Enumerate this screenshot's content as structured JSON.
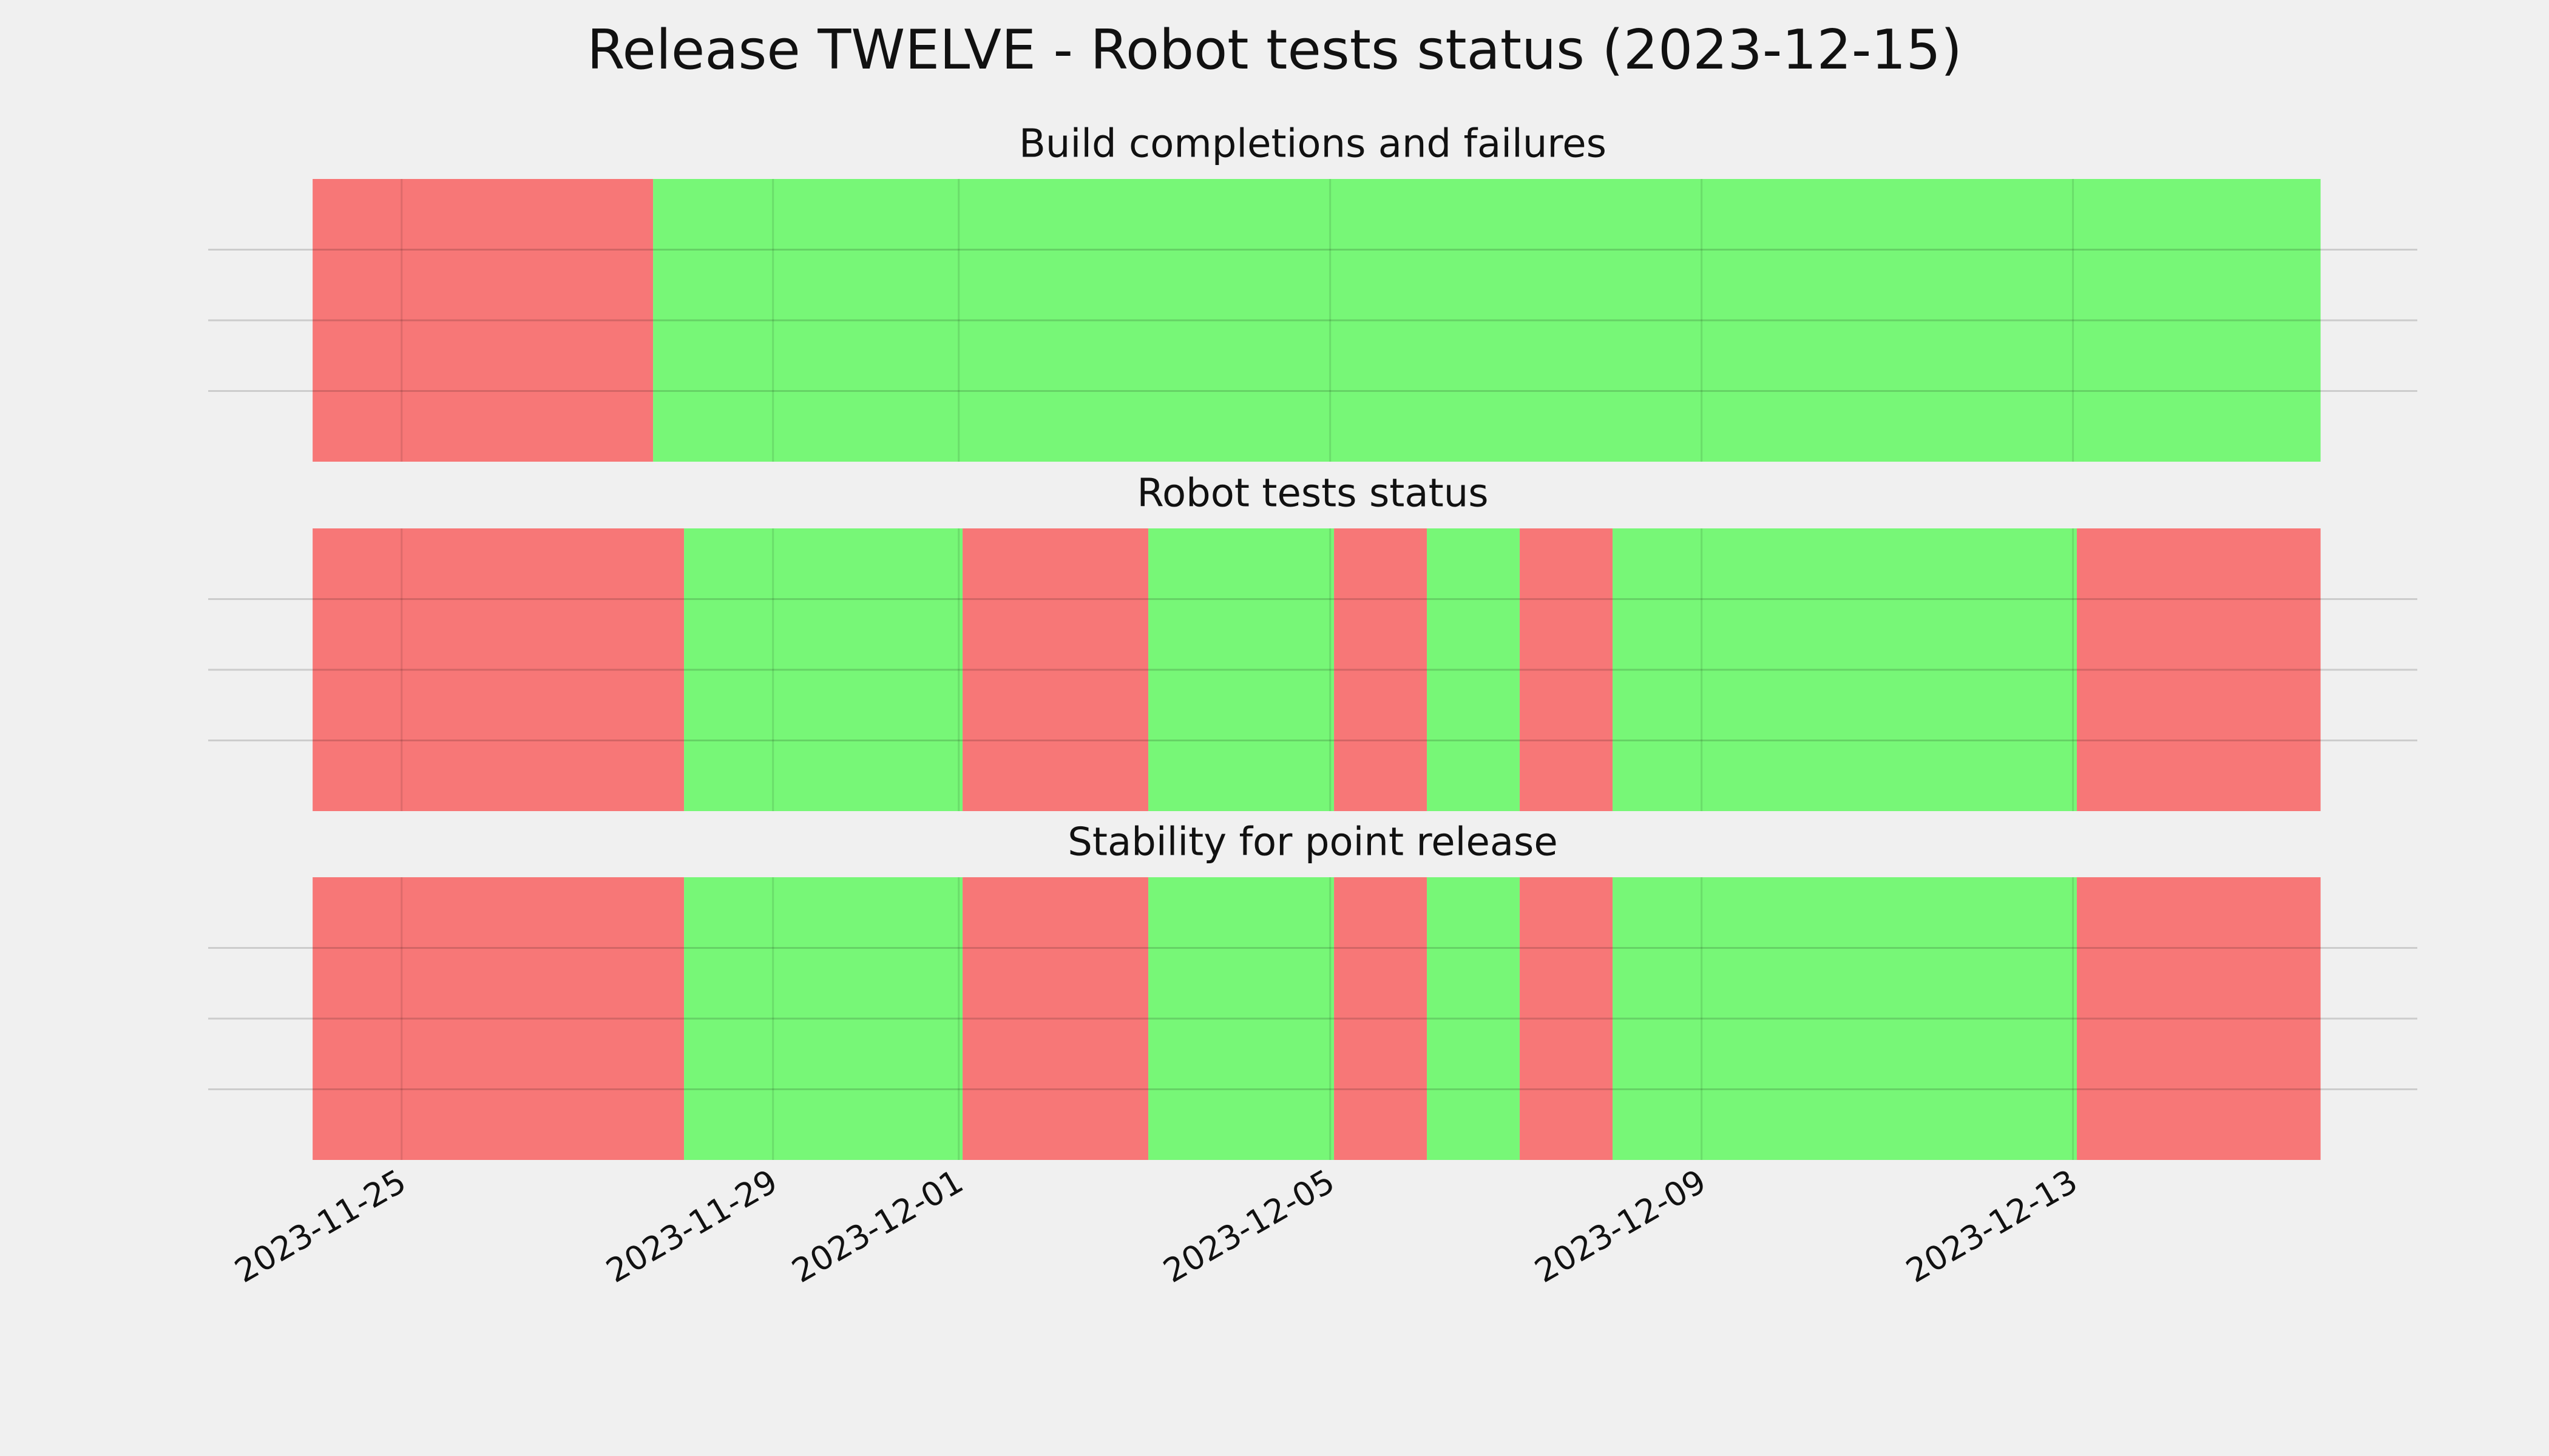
{
  "title": "Release TWELVE - Robot tests status (2023-12-15)",
  "chart_data": [
    {
      "type": "span",
      "title": "Build completions and failures",
      "xlim": [
        "2023-11-22T22:00:00Z",
        "2023-12-16T17:00:00Z"
      ],
      "xticks": [
        "2023-11-25",
        "2023-11-29",
        "2023-12-01",
        "2023-12-05",
        "2023-12-09",
        "2023-12-13"
      ],
      "ylim": [
        0,
        1
      ],
      "yticks": [
        0.25,
        0.5,
        0.75
      ],
      "grid": true,
      "show_xtick_labels": false,
      "segments": [
        {
          "start": "2023-11-24T01:00:00Z",
          "end": "2023-11-27T17:00:00Z",
          "color": "#f77777"
        },
        {
          "start": "2023-11-27T17:00:00Z",
          "end": "2023-12-15T16:00:00Z",
          "color": "#77f777"
        }
      ]
    },
    {
      "type": "span",
      "title": "Robot tests status",
      "xlim": [
        "2023-11-22T22:00:00Z",
        "2023-12-16T17:00:00Z"
      ],
      "xticks": [
        "2023-11-25",
        "2023-11-29",
        "2023-12-01",
        "2023-12-05",
        "2023-12-09",
        "2023-12-13"
      ],
      "ylim": [
        0,
        1
      ],
      "yticks": [
        0.25,
        0.5,
        0.75
      ],
      "grid": true,
      "show_xtick_labels": false,
      "segments": [
        {
          "start": "2023-11-24T01:00:00Z",
          "end": "2023-11-28T01:00:00Z",
          "color": "#f77777"
        },
        {
          "start": "2023-11-28T01:00:00Z",
          "end": "2023-12-01T01:00:00Z",
          "color": "#77f777"
        },
        {
          "start": "2023-12-01T01:00:00Z",
          "end": "2023-12-03T01:00:00Z",
          "color": "#f77777"
        },
        {
          "start": "2023-12-03T01:00:00Z",
          "end": "2023-12-05T01:00:00Z",
          "color": "#77f777"
        },
        {
          "start": "2023-12-05T01:00:00Z",
          "end": "2023-12-06T01:00:00Z",
          "color": "#f77777"
        },
        {
          "start": "2023-12-06T01:00:00Z",
          "end": "2023-12-07T01:00:00Z",
          "color": "#77f777"
        },
        {
          "start": "2023-12-07T01:00:00Z",
          "end": "2023-12-08T01:00:00Z",
          "color": "#f77777"
        },
        {
          "start": "2023-12-08T01:00:00Z",
          "end": "2023-12-13T01:00:00Z",
          "color": "#77f777"
        },
        {
          "start": "2023-12-13T01:00:00Z",
          "end": "2023-12-15T16:00:00Z",
          "color": "#f77777"
        }
      ]
    },
    {
      "type": "span",
      "title": "Stability for point release",
      "xlim": [
        "2023-11-22T22:00:00Z",
        "2023-12-16T17:00:00Z"
      ],
      "xticks": [
        "2023-11-25",
        "2023-11-29",
        "2023-12-01",
        "2023-12-05",
        "2023-12-09",
        "2023-12-13"
      ],
      "ylim": [
        0,
        1
      ],
      "yticks": [
        0.25,
        0.5,
        0.75
      ],
      "grid": true,
      "show_xtick_labels": true,
      "segments": [
        {
          "start": "2023-11-24T01:00:00Z",
          "end": "2023-11-28T01:00:00Z",
          "color": "#f77777"
        },
        {
          "start": "2023-11-28T01:00:00Z",
          "end": "2023-12-01T01:00:00Z",
          "color": "#77f777"
        },
        {
          "start": "2023-12-01T01:00:00Z",
          "end": "2023-12-03T01:00:00Z",
          "color": "#f77777"
        },
        {
          "start": "2023-12-03T01:00:00Z",
          "end": "2023-12-05T01:00:00Z",
          "color": "#77f777"
        },
        {
          "start": "2023-12-05T01:00:00Z",
          "end": "2023-12-06T01:00:00Z",
          "color": "#f77777"
        },
        {
          "start": "2023-12-06T01:00:00Z",
          "end": "2023-12-07T01:00:00Z",
          "color": "#77f777"
        },
        {
          "start": "2023-12-07T01:00:00Z",
          "end": "2023-12-08T01:00:00Z",
          "color": "#f77777"
        },
        {
          "start": "2023-12-08T01:00:00Z",
          "end": "2023-12-13T01:00:00Z",
          "color": "#77f777"
        },
        {
          "start": "2023-12-13T01:00:00Z",
          "end": "2023-12-15T16:00:00Z",
          "color": "#f77777"
        }
      ]
    }
  ]
}
